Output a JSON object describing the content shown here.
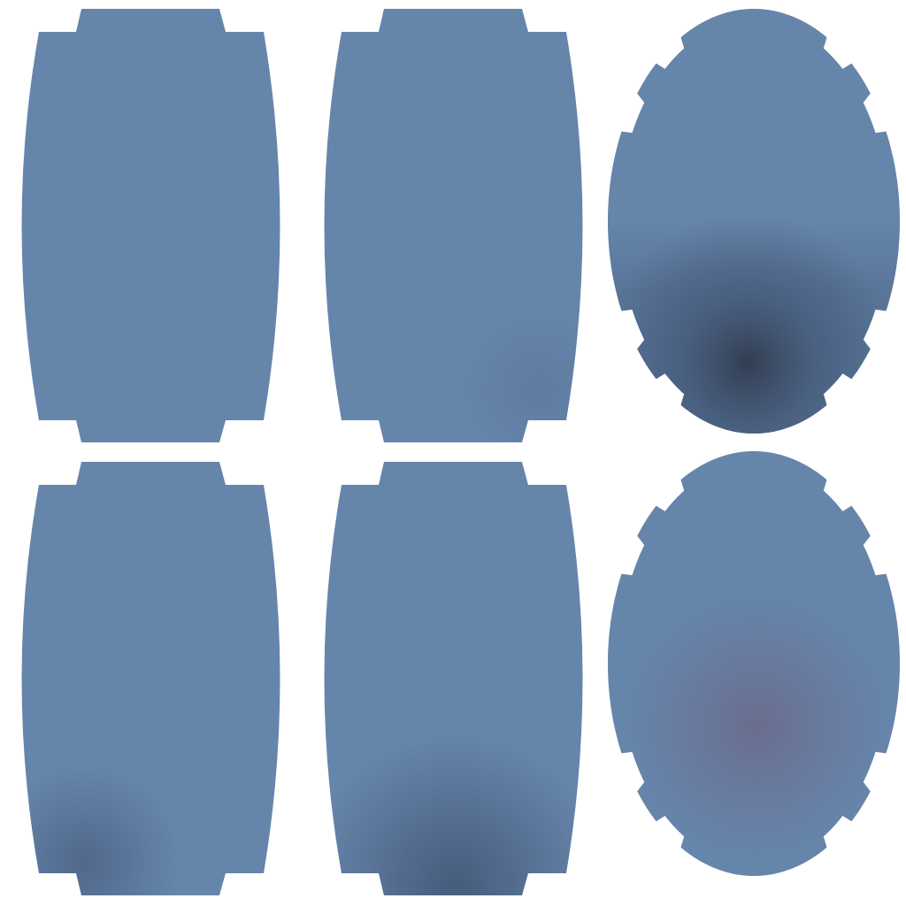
{
  "colors": {
    "background": "#ffffff",
    "base": "#6685ab",
    "shadow_dark": "#303a4d",
    "shadow_mid": "#3f5270",
    "shadow_warm": "#6a6a8a"
  },
  "panels": [
    {
      "shape": "barrel",
      "shading": "none"
    },
    {
      "shape": "barrel",
      "shading": "faint-lower-right"
    },
    {
      "shape": "oval-notched",
      "shading": "dark-lower-center"
    },
    {
      "shape": "barrel",
      "shading": "faint-lower-left"
    },
    {
      "shape": "barrel",
      "shading": "lower-center"
    },
    {
      "shape": "oval-notched",
      "shading": "warm-center"
    }
  ]
}
